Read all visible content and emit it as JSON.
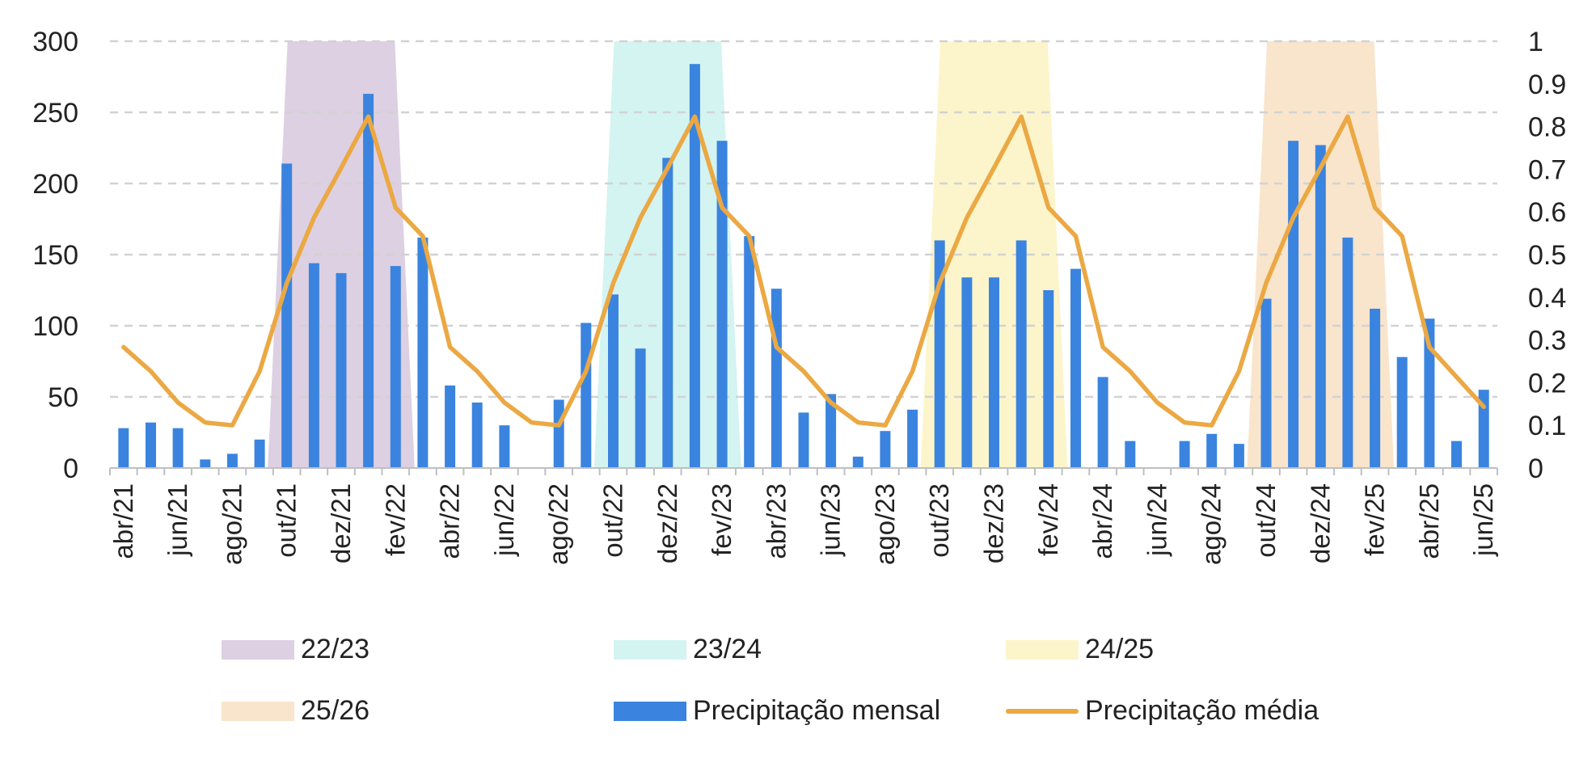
{
  "chart_data": {
    "type": "bar",
    "categories": [
      "abr/21",
      "mai/21",
      "jun/21",
      "jul/21",
      "ago/21",
      "set/21",
      "out/21",
      "nov/21",
      "dez/21",
      "jan/22",
      "fev/22",
      "mar/22",
      "abr/22",
      "mai/22",
      "jun/22",
      "jul/22",
      "ago/22",
      "set/22",
      "out/22",
      "nov/22",
      "dez/22",
      "jan/23",
      "fev/23",
      "mar/23",
      "abr/23",
      "mai/23",
      "jun/23",
      "jul/23",
      "ago/23",
      "set/23",
      "out/23",
      "nov/23",
      "dez/23",
      "jan/24",
      "fev/24",
      "mar/24",
      "abr/24",
      "mai/24",
      "jun/24",
      "jul/24",
      "ago/24",
      "set/24",
      "out/24",
      "nov/24",
      "dez/24",
      "jan/25",
      "fev/25",
      "mar/25",
      "abr/25",
      "mai/25",
      "jun/25"
    ],
    "tick_labels": [
      "abr/21",
      "jun/21",
      "ago/21",
      "out/21",
      "dez/21",
      "fev/22",
      "abr/22",
      "jun/22",
      "ago/22",
      "out/22",
      "dez/22",
      "fev/23",
      "abr/23",
      "jun/23",
      "ago/23",
      "out/23",
      "dez/23",
      "fev/24",
      "abr/24",
      "jun/24",
      "ago/24",
      "out/24",
      "dez/24",
      "fev/25",
      "abr/25",
      "jun/25"
    ],
    "y_left": {
      "min": 0,
      "max": 300,
      "ticks": [
        "0",
        "50",
        "100",
        "150",
        "200",
        "250",
        "300"
      ]
    },
    "y_right": {
      "min": 0,
      "max": 1,
      "ticks": [
        "0",
        "0.1",
        "0.2",
        "0.3",
        "0.4",
        "0.5",
        "0.6",
        "0.7",
        "0.8",
        "0.9",
        "1"
      ]
    },
    "grid": "horizontal dashed",
    "series": [
      {
        "name": "Precipitação mensal",
        "type": "bar",
        "axis": "left",
        "color": "#3a84df",
        "values": [
          28,
          32,
          28,
          6,
          10,
          20,
          214,
          144,
          137,
          263,
          142,
          162,
          58,
          46,
          30,
          0,
          48,
          102,
          122,
          84,
          218,
          284,
          230,
          163,
          126,
          39,
          52,
          8,
          26,
          41,
          160,
          134,
          134,
          160,
          125,
          140,
          64,
          19,
          0,
          19,
          24,
          17,
          119,
          230,
          227,
          162,
          112,
          78,
          105,
          19,
          55
        ]
      },
      {
        "name": "Precipitação média",
        "type": "line",
        "axis": "left",
        "color": "#eba843",
        "values": [
          85,
          68,
          46,
          32,
          30,
          68,
          130,
          176,
          211,
          247,
          183,
          163,
          85,
          68,
          46,
          32,
          30,
          68,
          130,
          176,
          211,
          247,
          183,
          163,
          85,
          68,
          46,
          32,
          30,
          68,
          130,
          176,
          211,
          247,
          183,
          163,
          85,
          68,
          46,
          32,
          30,
          68,
          130,
          176,
          211,
          247,
          183,
          163,
          85,
          64,
          43
        ]
      }
    ],
    "seasons": [
      {
        "name": "22/23",
        "color": "#ddd0e2",
        "start_index": 5.3,
        "plateau_start": 6,
        "plateau_end": 10,
        "end_index": 10.7
      },
      {
        "name": "23/24",
        "color": "#d3f4f1",
        "start_index": 17.3,
        "plateau_start": 18,
        "plateau_end": 22,
        "end_index": 22.7
      },
      {
        "name": "24/25",
        "color": "#fcf5cb",
        "start_index": 29.3,
        "plateau_start": 30,
        "plateau_end": 34,
        "end_index": 34.7
      },
      {
        "name": "25/26",
        "color": "#f9e5cc",
        "start_index": 41.3,
        "plateau_start": 42,
        "plateau_end": 46,
        "end_index": 46.7
      }
    ],
    "legend": {
      "items": [
        {
          "label": "22/23",
          "kind": "area",
          "color": "#ddd0e2"
        },
        {
          "label": "23/24",
          "kind": "area",
          "color": "#d3f4f1"
        },
        {
          "label": "24/25",
          "kind": "area",
          "color": "#fcf5cb"
        },
        {
          "label": "25/26",
          "kind": "area",
          "color": "#f9e5cc"
        },
        {
          "label": "Precipitação mensal",
          "kind": "bar",
          "color": "#3a84df"
        },
        {
          "label": "Precipitação média",
          "kind": "line",
          "color": "#eba843"
        }
      ]
    }
  }
}
